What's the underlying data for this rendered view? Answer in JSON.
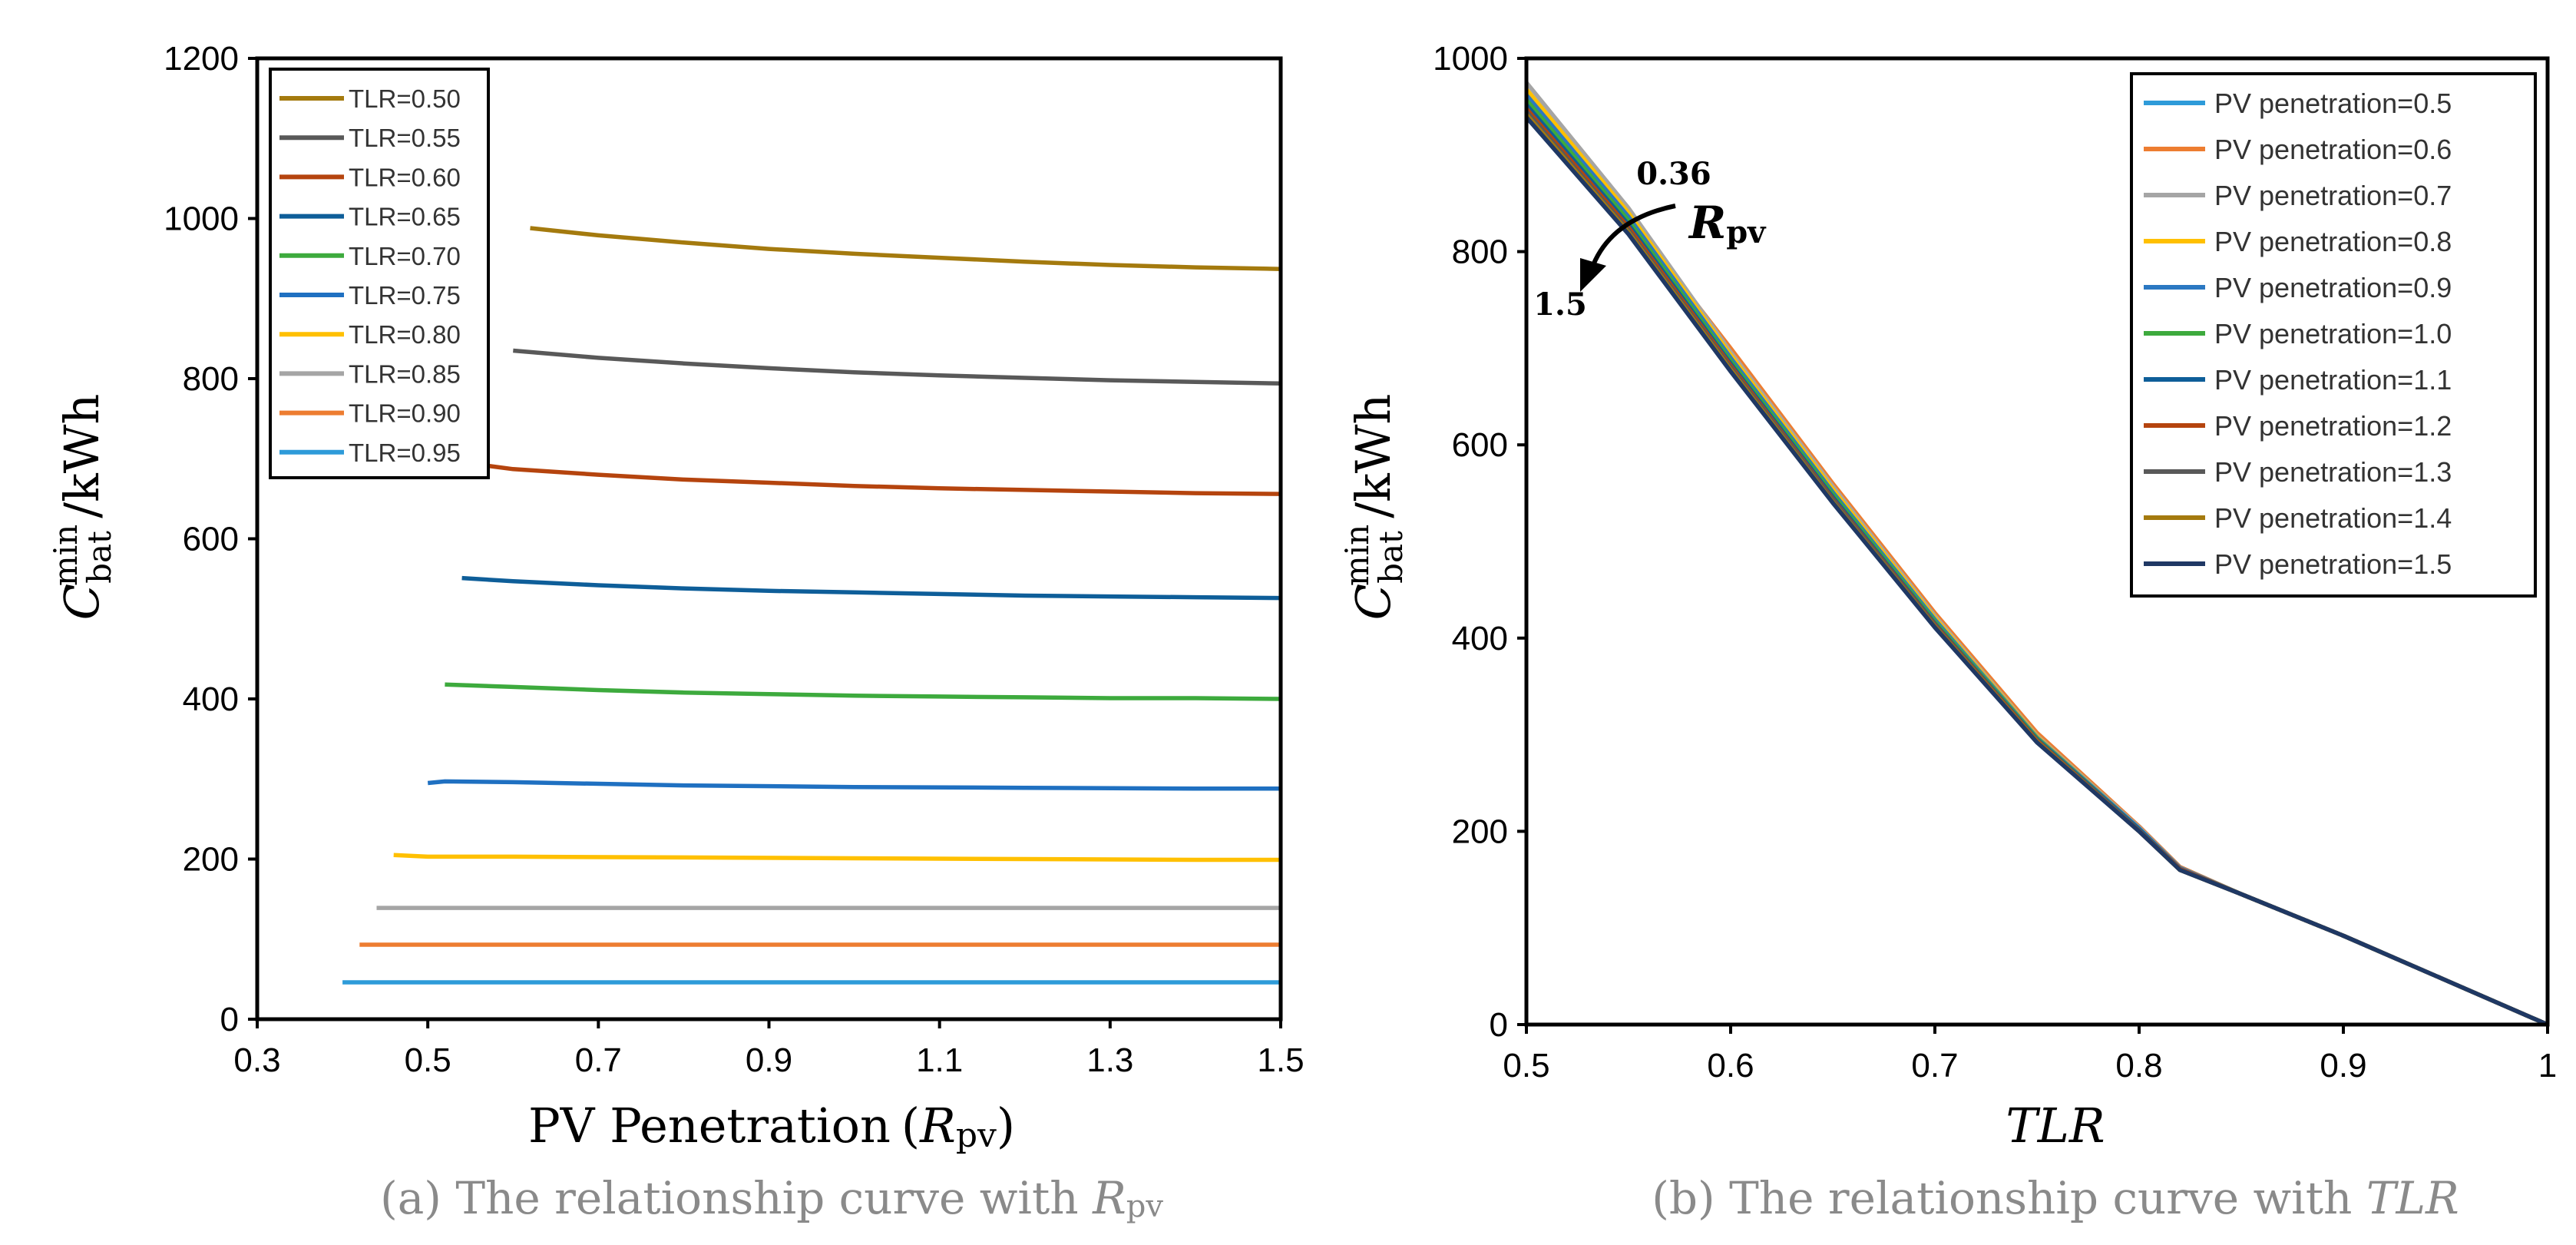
{
  "chart_data": [
    {
      "type": "line",
      "panel": "a",
      "xlabel": "PV Penetration",
      "xlabel_sym": "R",
      "xlabel_sub": "pv",
      "ylabel": "/kWh",
      "ylabel_sym": "C",
      "ylabel_sub": "bat",
      "ylabel_sup": "min",
      "xlim": [
        0.3,
        1.5
      ],
      "ylim": [
        0,
        1200
      ],
      "xticks": [
        "0.3",
        "0.5",
        "0.7",
        "0.9",
        "1.1",
        "1.3",
        "1.5"
      ],
      "yticks": [
        "0",
        "200",
        "400",
        "600",
        "800",
        "1000",
        "1200"
      ],
      "legend_position": "top-left",
      "series": [
        {
          "name": "TLR=0.50",
          "color": "#A47A0E",
          "x": [
            0.62,
            0.7,
            0.8,
            0.9,
            1.0,
            1.1,
            1.2,
            1.3,
            1.4,
            1.5
          ],
          "y": [
            988,
            979,
            970,
            962,
            956,
            951,
            946,
            942,
            939,
            937
          ]
        },
        {
          "name": "TLR=0.55",
          "color": "#595959",
          "x": [
            0.6,
            0.7,
            0.8,
            0.9,
            1.0,
            1.1,
            1.2,
            1.3,
            1.4,
            1.5
          ],
          "y": [
            835,
            826,
            819,
            813,
            808,
            804,
            801,
            798,
            796,
            794
          ]
        },
        {
          "name": "TLR=0.60",
          "color": "#B5440E",
          "x": [
            0.55,
            0.6,
            0.7,
            0.8,
            0.9,
            1.0,
            1.1,
            1.2,
            1.3,
            1.4,
            1.5
          ],
          "y": [
            694,
            687,
            680,
            674,
            670,
            666,
            663,
            661,
            659,
            657,
            656
          ]
        },
        {
          "name": "TLR=0.65",
          "color": "#0E5E99",
          "x": [
            0.54,
            0.6,
            0.7,
            0.8,
            0.9,
            1.0,
            1.1,
            1.2,
            1.3,
            1.4,
            1.5
          ],
          "y": [
            551,
            547,
            542,
            538,
            535,
            533,
            531,
            529,
            528,
            527,
            526
          ]
        },
        {
          "name": "TLR=0.70",
          "color": "#3DAA3D",
          "x": [
            0.52,
            0.6,
            0.7,
            0.8,
            0.9,
            1.0,
            1.1,
            1.2,
            1.3,
            1.4,
            1.5
          ],
          "y": [
            418,
            415,
            411,
            408,
            406,
            404,
            403,
            402,
            401,
            401,
            400
          ]
        },
        {
          "name": "TLR=0.75",
          "color": "#1F70C1",
          "x": [
            0.5,
            0.52,
            0.6,
            0.8,
            1.0,
            1.2,
            1.4,
            1.5
          ],
          "y": [
            295,
            297,
            296,
            292,
            290,
            289,
            288,
            288
          ]
        },
        {
          "name": "TLR=0.80",
          "color": "#FFC000",
          "x": [
            0.46,
            0.5,
            0.6,
            0.8,
            1.0,
            1.2,
            1.4,
            1.5
          ],
          "y": [
            205,
            203,
            203,
            202,
            201,
            200,
            199,
            199
          ]
        },
        {
          "name": "TLR=0.85",
          "color": "#A5A5A5",
          "x": [
            0.44,
            0.6,
            0.8,
            1.0,
            1.2,
            1.4,
            1.5
          ],
          "y": [
            139,
            139,
            139,
            139,
            139,
            139,
            139
          ]
        },
        {
          "name": "TLR=0.90",
          "color": "#ED7D31",
          "x": [
            0.42,
            0.6,
            0.8,
            1.0,
            1.2,
            1.4,
            1.5
          ],
          "y": [
            93,
            93,
            93,
            93,
            93,
            93,
            93
          ]
        },
        {
          "name": "TLR=0.95",
          "color": "#2E9BD9",
          "x": [
            0.4,
            0.6,
            0.8,
            1.0,
            1.2,
            1.4,
            1.5
          ],
          "y": [
            46,
            46,
            46,
            46,
            46,
            46,
            46
          ]
        }
      ]
    },
    {
      "type": "line",
      "panel": "b",
      "xlabel_sym": "TLR",
      "ylabel": "/kWh",
      "ylabel_sym": "C",
      "ylabel_sub": "bat",
      "ylabel_sup": "min",
      "xlim": [
        0.5,
        1.0
      ],
      "ylim": [
        0,
        1000
      ],
      "xticks": [
        "0.5",
        "0.6",
        "0.7",
        "0.8",
        "0.9",
        "1"
      ],
      "yticks": [
        "0",
        "200",
        "400",
        "600",
        "800",
        "1000"
      ],
      "legend_position": "top-right",
      "series": [
        {
          "name": "PV penetration=0.5",
          "color": "#2E9BD9",
          "x": [
            0.5,
            0.55,
            0.6,
            0.65,
            0.7,
            0.75,
            0.8,
            0.82,
            0.85,
            0.9,
            0.95,
            1.0
          ],
          "y": [
            955,
            835,
            692,
            553,
            420,
            297,
            205,
            163,
            135,
            92,
            46,
            0
          ]
        },
        {
          "name": "PV penetration=0.6",
          "color": "#ED7D31",
          "x": [
            0.54,
            0.6,
            0.65,
            0.7,
            0.75,
            0.8,
            0.82,
            0.85,
            0.9,
            0.95,
            1.0
          ],
          "y": [
            864,
            700,
            560,
            426,
            302,
            205,
            163,
            135,
            92,
            46,
            0
          ]
        },
        {
          "name": "PV penetration=0.7",
          "color": "#A5A5A5",
          "x": [
            0.5,
            0.55,
            0.6,
            0.65,
            0.7,
            0.75,
            0.8,
            0.82,
            0.85,
            0.9,
            0.95,
            1.0
          ],
          "y": [
            975,
            845,
            696,
            557,
            423,
            299,
            204,
            162,
            135,
            92,
            46,
            0
          ]
        },
        {
          "name": "PV penetration=0.8",
          "color": "#FFC000",
          "x": [
            0.5,
            0.55,
            0.6,
            0.65,
            0.7,
            0.75,
            0.8,
            0.82,
            0.85,
            0.9,
            0.95,
            1.0
          ],
          "y": [
            968,
            840,
            693,
            554,
            421,
            298,
            203,
            162,
            135,
            92,
            46,
            0
          ]
        },
        {
          "name": "PV penetration=0.9",
          "color": "#2B78C2",
          "x": [
            0.5,
            0.55,
            0.6,
            0.65,
            0.7,
            0.75,
            0.8,
            0.82,
            0.85,
            0.9,
            0.95,
            1.0
          ],
          "y": [
            962,
            836,
            690,
            551,
            419,
            297,
            203,
            162,
            135,
            92,
            46,
            0
          ]
        },
        {
          "name": "PV penetration=1.0",
          "color": "#3DAA3D",
          "x": [
            0.5,
            0.55,
            0.6,
            0.65,
            0.7,
            0.75,
            0.8,
            0.82,
            0.85,
            0.9,
            0.95,
            1.0
          ],
          "y": [
            957,
            832,
            687,
            549,
            417,
            296,
            202,
            161,
            135,
            92,
            46,
            0
          ]
        },
        {
          "name": "PV penetration=1.1",
          "color": "#0E5E99",
          "x": [
            0.5,
            0.55,
            0.6,
            0.65,
            0.7,
            0.75,
            0.8,
            0.82,
            0.85,
            0.9,
            0.95,
            1.0
          ],
          "y": [
            952,
            828,
            684,
            546,
            415,
            295,
            202,
            161,
            135,
            92,
            46,
            0
          ]
        },
        {
          "name": "PV penetration=1.2",
          "color": "#B5440E",
          "x": [
            0.5,
            0.55,
            0.6,
            0.65,
            0.7,
            0.75,
            0.8,
            0.82,
            0.85,
            0.9,
            0.95,
            1.0
          ],
          "y": [
            948,
            825,
            682,
            544,
            414,
            294,
            201,
            161,
            135,
            92,
            46,
            0
          ]
        },
        {
          "name": "PV penetration=1.3",
          "color": "#595959",
          "x": [
            0.5,
            0.55,
            0.6,
            0.65,
            0.7,
            0.75,
            0.8,
            0.82,
            0.85,
            0.9,
            0.95,
            1.0
          ],
          "y": [
            945,
            822,
            680,
            543,
            413,
            293,
            201,
            160,
            135,
            92,
            46,
            0
          ]
        },
        {
          "name": "PV penetration=1.4",
          "color": "#A47A0E",
          "x": [
            0.5,
            0.55,
            0.6,
            0.65,
            0.7,
            0.75,
            0.8,
            0.82,
            0.85,
            0.9,
            0.95,
            1.0
          ],
          "y": [
            942,
            820,
            678,
            541,
            412,
            293,
            200,
            160,
            135,
            92,
            46,
            0
          ]
        },
        {
          "name": "PV penetration=1.5",
          "color": "#1F3864",
          "x": [
            0.5,
            0.55,
            0.6,
            0.65,
            0.7,
            0.75,
            0.8,
            0.82,
            0.85,
            0.9,
            0.95,
            1.0
          ],
          "y": [
            939,
            818,
            676,
            540,
            411,
            292,
            200,
            160,
            135,
            92,
            46,
            0
          ]
        }
      ],
      "annotation": {
        "start": "0.36",
        "end": "1.5",
        "label_sym": "R",
        "label_sub": "pv"
      }
    }
  ],
  "captions": {
    "a_text": "(a) The relationship curve with ",
    "a_sym": "R",
    "a_sub": "pv",
    "b_text": "(b) The relationship curve with ",
    "b_sym": "TLR"
  },
  "axis_text": {
    "a_xlabel_open": "(",
    "a_xlabel_close": ")"
  }
}
